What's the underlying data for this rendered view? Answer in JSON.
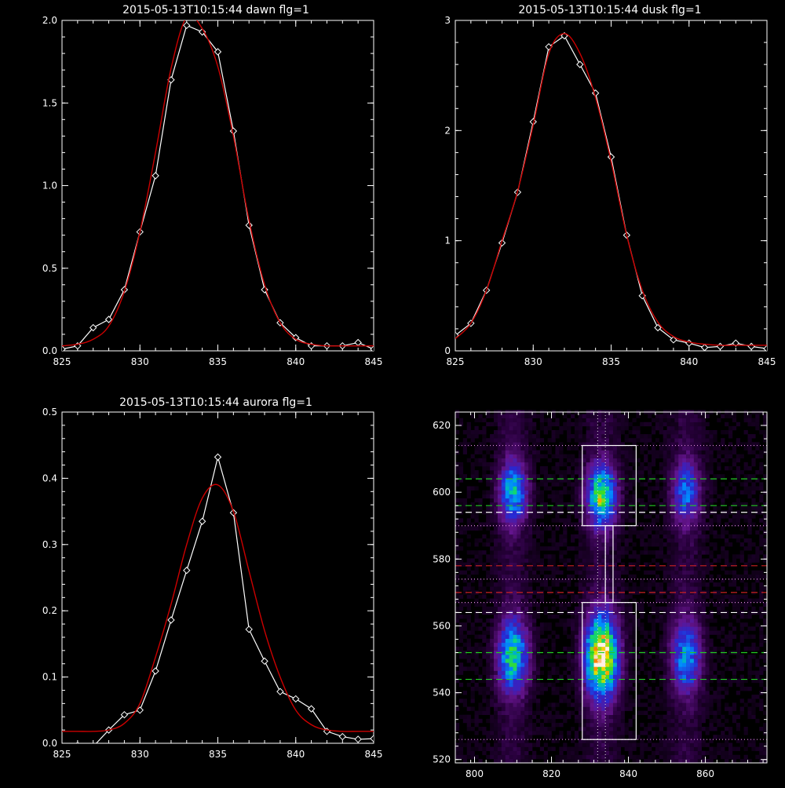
{
  "chart_data": [
    {
      "type": "line",
      "title": "2015-05-13T10:15:44 dawn flg=1",
      "xlim": [
        825,
        845
      ],
      "ylim": [
        0,
        2.0
      ],
      "xticks": [
        825,
        830,
        835,
        840,
        845
      ],
      "yticks": [
        0.0,
        0.5,
        1.0,
        1.5,
        2.0
      ],
      "xtick_labels": [
        "825",
        "830",
        "835",
        "840",
        "845"
      ],
      "ytick_labels": [
        "0.0",
        "0.5",
        "1.0",
        "1.5",
        "2.0"
      ],
      "series": [
        {
          "kind": "data",
          "color": "#ffffff",
          "marker": "diamond",
          "x": [
            825,
            826,
            827,
            828,
            829,
            830,
            831,
            832,
            833,
            834,
            835,
            836,
            837,
            838,
            839,
            840,
            841,
            842,
            843,
            844,
            845
          ],
          "y": [
            0.01,
            0.03,
            0.14,
            0.19,
            0.37,
            0.72,
            1.06,
            1.64,
            1.97,
            1.93,
            1.81,
            1.33,
            0.76,
            0.37,
            0.17,
            0.08,
            0.03,
            0.03,
            0.03,
            0.05,
            0.01
          ]
        },
        {
          "kind": "fit",
          "color": "#cc0000",
          "marker": "none",
          "x": [
            825,
            826,
            827,
            828,
            829,
            830,
            831,
            832,
            833,
            834,
            835,
            836,
            837,
            838,
            839,
            840,
            841,
            842,
            843,
            844,
            845
          ],
          "y": [
            0.03,
            0.04,
            0.07,
            0.15,
            0.36,
            0.72,
            1.2,
            1.71,
            2.02,
            1.95,
            1.72,
            1.3,
            0.79,
            0.4,
            0.17,
            0.07,
            0.04,
            0.03,
            0.03,
            0.03,
            0.03
          ]
        }
      ]
    },
    {
      "type": "line",
      "title": "2015-05-13T10:15:44 dusk flg=1",
      "xlim": [
        825,
        845
      ],
      "ylim": [
        0,
        3
      ],
      "xticks": [
        825,
        830,
        835,
        840,
        845
      ],
      "yticks": [
        0,
        1,
        2,
        3
      ],
      "xtick_labels": [
        "825",
        "830",
        "835",
        "840",
        "845"
      ],
      "ytick_labels": [
        "0",
        "1",
        "2",
        "3"
      ],
      "series": [
        {
          "kind": "data",
          "color": "#ffffff",
          "marker": "diamond",
          "x": [
            825,
            826,
            827,
            828,
            829,
            830,
            831,
            832,
            833,
            834,
            835,
            836,
            837,
            838,
            839,
            840,
            841,
            842,
            843,
            844,
            845
          ],
          "y": [
            0.14,
            0.25,
            0.55,
            0.98,
            1.44,
            2.08,
            2.76,
            2.86,
            2.6,
            2.34,
            1.76,
            1.05,
            0.5,
            0.21,
            0.1,
            0.07,
            0.03,
            0.04,
            0.07,
            0.04,
            0.02
          ]
        },
        {
          "kind": "fit",
          "color": "#cc0000",
          "marker": "none",
          "x": [
            825,
            826,
            827,
            828,
            829,
            830,
            831,
            832,
            833,
            834,
            835,
            836,
            837,
            838,
            839,
            840,
            841,
            842,
            843,
            844,
            845
          ],
          "y": [
            0.11,
            0.25,
            0.55,
            1.0,
            1.45,
            2.05,
            2.7,
            2.88,
            2.7,
            2.3,
            1.72,
            1.05,
            0.55,
            0.26,
            0.13,
            0.08,
            0.06,
            0.05,
            0.05,
            0.05,
            0.05
          ]
        }
      ]
    },
    {
      "type": "line",
      "title": "2015-05-13T10:15:44 aurora flg=1",
      "xlim": [
        825,
        845
      ],
      "ylim": [
        0,
        0.5
      ],
      "xticks": [
        825,
        830,
        835,
        840,
        845
      ],
      "yticks": [
        0.0,
        0.1,
        0.2,
        0.3,
        0.4,
        0.5
      ],
      "xtick_labels": [
        "825",
        "830",
        "835",
        "840",
        "845"
      ],
      "ytick_labels": [
        "0.0",
        "0.1",
        "0.2",
        "0.3",
        "0.4",
        "0.5"
      ],
      "series": [
        {
          "kind": "data",
          "color": "#ffffff",
          "marker": "diamond",
          "x": [
            826,
            827,
            828,
            829,
            830,
            831,
            832,
            833,
            834,
            835,
            836,
            837,
            838,
            839,
            840,
            841,
            842,
            843,
            844,
            845
          ],
          "y": [
            -0.003,
            -0.005,
            0.02,
            0.043,
            0.05,
            0.109,
            0.186,
            0.261,
            0.335,
            0.432,
            0.348,
            0.172,
            0.124,
            0.078,
            0.067,
            0.052,
            0.018,
            0.01,
            0.006,
            0.007
          ]
        },
        {
          "kind": "fit",
          "color": "#cc0000",
          "marker": "none",
          "x": [
            825,
            826,
            827,
            828,
            829,
            830,
            831,
            832,
            833,
            834,
            835,
            836,
            837,
            838,
            839,
            840,
            841,
            842,
            843,
            844,
            845
          ],
          "y": [
            0.018,
            0.018,
            0.018,
            0.02,
            0.03,
            0.06,
            0.13,
            0.21,
            0.3,
            0.37,
            0.39,
            0.35,
            0.26,
            0.17,
            0.1,
            0.05,
            0.028,
            0.02,
            0.018,
            0.018,
            0.018
          ]
        }
      ]
    },
    {
      "type": "heatmap",
      "title": "",
      "xlim": [
        795,
        876
      ],
      "ylim": [
        519,
        624
      ],
      "xticks": [
        800,
        820,
        840,
        860
      ],
      "yticks": [
        520,
        540,
        560,
        580,
        600,
        620
      ],
      "xtick_labels": [
        "800",
        "820",
        "840",
        "860"
      ],
      "ytick_labels": [
        "520",
        "540",
        "560",
        "580",
        "600",
        "620"
      ],
      "blobs": [
        {
          "x": 810,
          "y": 600,
          "sx": 2.4,
          "sy": 6,
          "peak": 0.5
        },
        {
          "x": 810,
          "y": 551,
          "sx": 2.6,
          "sy": 7,
          "peak": 0.6
        },
        {
          "x": 833,
          "y": 599,
          "sx": 2.5,
          "sy": 6,
          "peak": 0.7
        },
        {
          "x": 833,
          "y": 551,
          "sx": 2.8,
          "sy": 8,
          "peak": 1.0
        },
        {
          "x": 855,
          "y": 600,
          "sx": 2.4,
          "sy": 6,
          "peak": 0.38
        },
        {
          "x": 855,
          "y": 551,
          "sx": 2.6,
          "sy": 7,
          "peak": 0.44
        }
      ],
      "boxes": [
        {
          "x0": 828,
          "x1": 842,
          "y0": 590,
          "y1": 614
        },
        {
          "x0": 828,
          "x1": 842,
          "y0": 526,
          "y1": 567
        },
        {
          "x0": 834,
          "x1": 836,
          "y0": 567,
          "y1": 590
        }
      ],
      "hlines": [
        {
          "y": 604,
          "color": "#22cc22",
          "style": "dashed"
        },
        {
          "y": 596,
          "color": "#22cc22",
          "style": "dashed"
        },
        {
          "y": 552,
          "color": "#22cc22",
          "style": "dashed"
        },
        {
          "y": 544,
          "color": "#22cc22",
          "style": "dashed"
        },
        {
          "y": 594,
          "color": "#ffffff",
          "style": "dashed"
        },
        {
          "y": 564,
          "color": "#ffffff",
          "style": "dashed"
        },
        {
          "y": 578,
          "color": "#cc2222",
          "style": "dashed"
        },
        {
          "y": 570,
          "color": "#cc2222",
          "style": "dashed"
        },
        {
          "y": 614,
          "color": "#dd88dd",
          "style": "dotted"
        },
        {
          "y": 590,
          "color": "#dd88dd",
          "style": "dotted"
        },
        {
          "y": 574,
          "color": "#dd88dd",
          "style": "dotted"
        },
        {
          "y": 567,
          "color": "#dd88dd",
          "style": "dotted"
        },
        {
          "y": 526,
          "color": "#dd88dd",
          "style": "dotted"
        }
      ],
      "vlines": [
        {
          "x": 832,
          "color": "#dddddd",
          "style": "dotted"
        },
        {
          "x": 834,
          "color": "#dddddd",
          "style": "dotted"
        }
      ]
    }
  ]
}
